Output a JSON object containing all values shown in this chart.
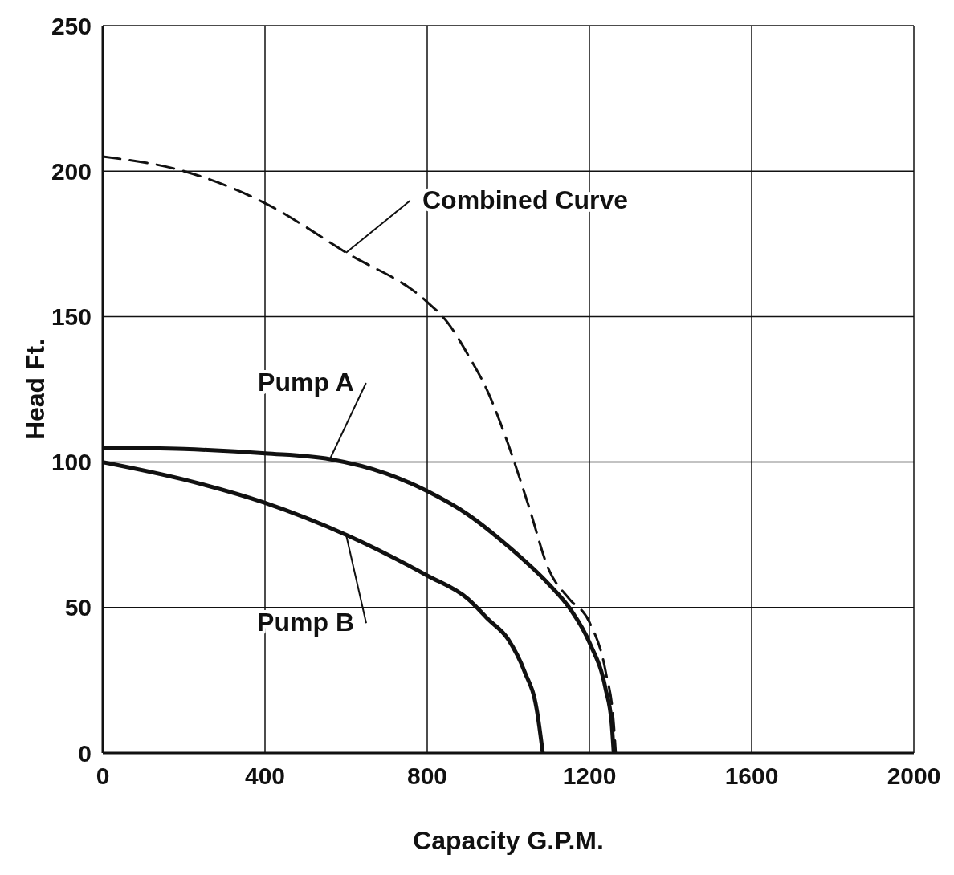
{
  "chart_data": {
    "type": "line",
    "xlabel": "Capacity G.P.M.",
    "ylabel": "Head Ft.",
    "xlim": [
      0,
      2000
    ],
    "xticks": [
      0,
      400,
      800,
      1200,
      1600,
      2000
    ],
    "ylim": [
      0,
      250
    ],
    "yticks": [
      0,
      50,
      100,
      150,
      200,
      250
    ],
    "grid": true,
    "legend": false,
    "marker": "none",
    "series": [
      {
        "name": "Pump A",
        "color": "#111111",
        "line_style": "solid",
        "x": [
          0,
          200,
          400,
          560,
          700,
          800,
          900,
          1000,
          1100,
          1150,
          1200,
          1240,
          1255,
          1260
        ],
        "values": [
          105,
          104.5,
          103,
          101,
          96,
          90,
          82,
          71,
          58,
          50,
          38,
          22,
          10,
          0
        ]
      },
      {
        "name": "Pump B",
        "color": "#111111",
        "line_style": "solid",
        "x": [
          0,
          200,
          400,
          600,
          800,
          900,
          950,
          1000,
          1040,
          1070,
          1085
        ],
        "values": [
          100,
          94,
          86,
          75,
          61,
          53,
          46,
          39,
          28,
          15,
          0
        ]
      },
      {
        "name": "Combined Curve",
        "color": "#111111",
        "line_style": "dashed",
        "x": [
          0,
          200,
          400,
          600,
          800,
          850,
          900,
          950,
          1000,
          1050,
          1100,
          1150,
          1200,
          1240,
          1260,
          1265
        ],
        "values": [
          205,
          200,
          189,
          172,
          155,
          148,
          137,
          124,
          106,
          85,
          63,
          53,
          45,
          28,
          10,
          0
        ]
      }
    ]
  }
}
